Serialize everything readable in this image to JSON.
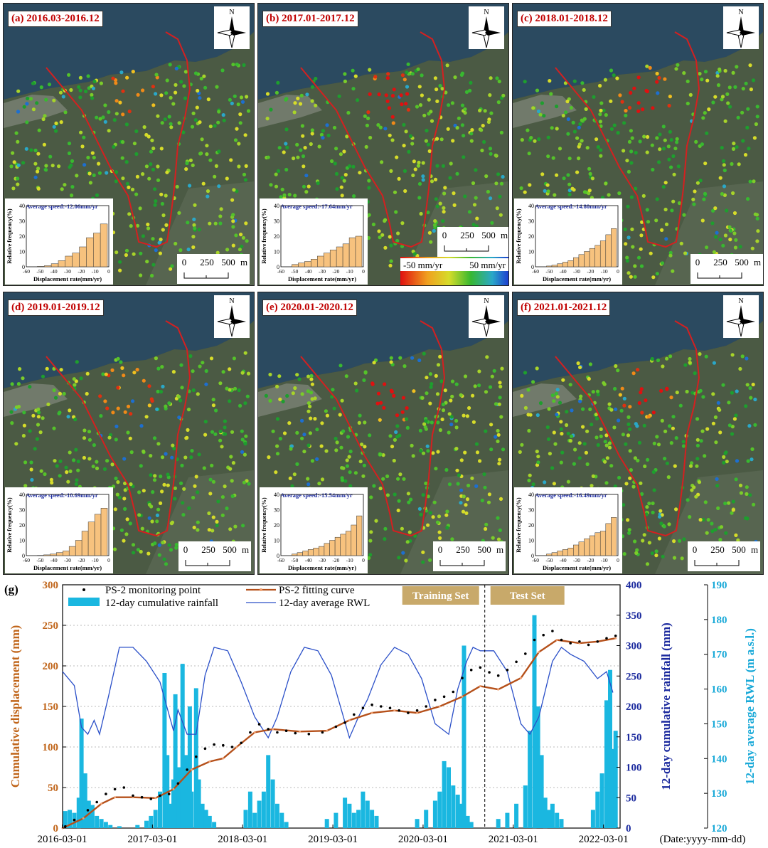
{
  "panels": [
    {
      "label": "(a) 2016.03-2016.12",
      "avg": "Average speed:-12.06mm/yr",
      "hist": [
        0.3,
        0.7,
        2,
        4,
        7,
        9,
        13,
        19,
        22,
        28
      ]
    },
    {
      "label": "(b) 2017.01-2017.12",
      "avg": "Average speed:-17.64mm/yr",
      "hist": [
        1.5,
        2.5,
        3.5,
        5,
        7,
        9,
        11,
        13,
        15,
        19,
        20
      ]
    },
    {
      "label": "(c) 2018.01-2018.12",
      "avg": "Average speed:-14.80mm/yr",
      "hist": [
        0.5,
        1,
        2,
        3,
        4,
        6,
        8,
        10,
        12,
        14,
        17,
        21,
        25
      ]
    },
    {
      "label": "(d) 2019.01-2019.12",
      "avg": "Average speed:-10.69mm/yr",
      "hist": [
        0.2,
        0.5,
        1,
        2,
        3,
        6,
        10,
        16,
        22,
        27,
        31
      ]
    },
    {
      "label": "(e) 2020.01-2020.12",
      "avg": "Average speed:-15.54mm/yr",
      "hist": [
        1,
        2,
        3,
        4,
        5,
        6,
        8,
        10,
        12,
        14,
        16,
        20,
        26
      ]
    },
    {
      "label": "(f) 2021.01-2021.12",
      "avg": "Average speed:-16.49mm/yr",
      "hist": [
        1,
        2,
        3,
        4,
        5,
        7,
        9,
        11,
        13,
        15,
        16,
        21,
        25
      ]
    }
  ],
  "hist_axes": {
    "ylabel": "Relative frequency(%)",
    "xlabel": "Displacement rate(mm/yr)",
    "yticks": [
      "0",
      "10",
      "20",
      "30",
      "40"
    ],
    "xticks": [
      "-60",
      "-50",
      "-40",
      "-30",
      "-20",
      "-10",
      "0"
    ]
  },
  "north_label": "N",
  "scale": {
    "t0": "0",
    "t1": "250",
    "t2": "500",
    "unit": "m"
  },
  "color_legend": {
    "min": "-50 mm/yr",
    "max": "50 mm/yr"
  },
  "colors": {
    "red_curve": "#d42020",
    "rain": "#1ab7e0",
    "rwl": "#2a4fc8",
    "fit": "#b5501a",
    "ytitle_left": "#c0651a",
    "ytitle_mid": "#1b2a9e",
    "ytitle_right": "#19a9d8",
    "tag_bg": "#c8a96a"
  },
  "chart_data": {
    "type": "line",
    "label": "(g)",
    "legend": {
      "points": "PS-2 monitoring point",
      "fit": "PS-2 fitting curve",
      "rain": "12-day cumulative rainfall",
      "rwl": "12-day average RWL"
    },
    "xlabel": "(Date:yyyy-mm-dd)",
    "x_ticks": [
      "2016-03-01",
      "2017-03-01",
      "2018-03-01",
      "2019-03-01",
      "2020-03-01",
      "2021-03-01",
      "2022-03-01"
    ],
    "y_left": {
      "title": "Cumulative displacement (mm)",
      "ticks": [
        "0",
        "50",
        "100",
        "150",
        "200",
        "250",
        "300"
      ],
      "range": [
        0,
        300
      ]
    },
    "y_mid": {
      "title": "12-day cumulative rainfall (mm)",
      "ticks": [
        "0",
        "50",
        "100",
        "150",
        "200",
        "250",
        "300",
        "350",
        "400"
      ],
      "range": [
        0,
        400
      ]
    },
    "y_right": {
      "title": "12-day average RWL (m a.s.l.)",
      "ticks": [
        "120",
        "130",
        "140",
        "150",
        "160",
        "170",
        "180",
        "190"
      ],
      "range": [
        120,
        190
      ]
    },
    "training_label": "Training Set",
    "test_label": "Test Set",
    "split_year": 2020.85,
    "fit": [
      [
        2016.17,
        0
      ],
      [
        2016.4,
        12
      ],
      [
        2016.6,
        30
      ],
      [
        2016.75,
        38
      ],
      [
        2016.95,
        38
      ],
      [
        2017.2,
        37
      ],
      [
        2017.4,
        48
      ],
      [
        2017.6,
        72
      ],
      [
        2017.8,
        82
      ],
      [
        2017.95,
        86
      ],
      [
        2018.1,
        100
      ],
      [
        2018.3,
        118
      ],
      [
        2018.5,
        122
      ],
      [
        2018.8,
        119
      ],
      [
        2019.1,
        120
      ],
      [
        2019.35,
        133
      ],
      [
        2019.6,
        142
      ],
      [
        2019.85,
        145
      ],
      [
        2020.1,
        142
      ],
      [
        2020.35,
        150
      ],
      [
        2020.6,
        162
      ],
      [
        2020.8,
        175
      ],
      [
        2021.0,
        171
      ],
      [
        2021.25,
        185
      ],
      [
        2021.45,
        217
      ],
      [
        2021.65,
        232
      ],
      [
        2021.9,
        228
      ],
      [
        2022.1,
        230
      ],
      [
        2022.3,
        234
      ]
    ],
    "rwl": [
      [
        2016.17,
        165
      ],
      [
        2016.3,
        161
      ],
      [
        2016.38,
        149
      ],
      [
        2016.45,
        147
      ],
      [
        2016.52,
        151
      ],
      [
        2016.58,
        147
      ],
      [
        2016.68,
        158
      ],
      [
        2016.8,
        172
      ],
      [
        2016.95,
        172
      ],
      [
        2017.1,
        168
      ],
      [
        2017.25,
        162
      ],
      [
        2017.4,
        148
      ],
      [
        2017.45,
        154
      ],
      [
        2017.55,
        147
      ],
      [
        2017.65,
        147
      ],
      [
        2017.75,
        164
      ],
      [
        2017.85,
        172
      ],
      [
        2018.0,
        171
      ],
      [
        2018.15,
        162
      ],
      [
        2018.3,
        152
      ],
      [
        2018.45,
        146
      ],
      [
        2018.55,
        152
      ],
      [
        2018.7,
        165
      ],
      [
        2018.85,
        172
      ],
      [
        2019.0,
        171
      ],
      [
        2019.15,
        164
      ],
      [
        2019.35,
        146
      ],
      [
        2019.45,
        152
      ],
      [
        2019.55,
        157
      ],
      [
        2019.7,
        167
      ],
      [
        2019.85,
        172
      ],
      [
        2020.0,
        170
      ],
      [
        2020.15,
        163
      ],
      [
        2020.3,
        150
      ],
      [
        2020.45,
        147
      ],
      [
        2020.55,
        160
      ],
      [
        2020.65,
        168
      ],
      [
        2020.72,
        172
      ],
      [
        2020.8,
        171
      ],
      [
        2020.95,
        171
      ],
      [
        2021.1,
        165
      ],
      [
        2021.25,
        150
      ],
      [
        2021.35,
        147
      ],
      [
        2021.45,
        152
      ],
      [
        2021.6,
        168
      ],
      [
        2021.7,
        172
      ],
      [
        2021.8,
        170
      ],
      [
        2021.95,
        168
      ],
      [
        2022.1,
        163
      ],
      [
        2022.2,
        165
      ],
      [
        2022.27,
        159
      ]
    ],
    "rain": [
      [
        2016.2,
        28
      ],
      [
        2016.25,
        30
      ],
      [
        2016.3,
        25
      ],
      [
        2016.35,
        50
      ],
      [
        2016.38,
        180
      ],
      [
        2016.42,
        90
      ],
      [
        2016.46,
        45
      ],
      [
        2016.5,
        38
      ],
      [
        2016.55,
        20
      ],
      [
        2016.6,
        15
      ],
      [
        2016.65,
        10
      ],
      [
        2016.7,
        5
      ],
      [
        2016.8,
        3
      ],
      [
        2017.0,
        5
      ],
      [
        2017.1,
        12
      ],
      [
        2017.15,
        20
      ],
      [
        2017.2,
        30
      ],
      [
        2017.25,
        60
      ],
      [
        2017.3,
        255
      ],
      [
        2017.33,
        120
      ],
      [
        2017.36,
        40
      ],
      [
        2017.4,
        80
      ],
      [
        2017.42,
        220
      ],
      [
        2017.46,
        100
      ],
      [
        2017.5,
        270
      ],
      [
        2017.54,
        120
      ],
      [
        2017.58,
        200
      ],
      [
        2017.6,
        60
      ],
      [
        2017.65,
        230
      ],
      [
        2017.68,
        80
      ],
      [
        2017.72,
        40
      ],
      [
        2017.76,
        30
      ],
      [
        2017.8,
        20
      ],
      [
        2017.85,
        10
      ],
      [
        2018.2,
        30
      ],
      [
        2018.25,
        60
      ],
      [
        2018.3,
        25
      ],
      [
        2018.35,
        45
      ],
      [
        2018.4,
        60
      ],
      [
        2018.45,
        120
      ],
      [
        2018.5,
        80
      ],
      [
        2018.55,
        40
      ],
      [
        2018.6,
        25
      ],
      [
        2018.65,
        10
      ],
      [
        2019.1,
        15
      ],
      [
        2019.2,
        25
      ],
      [
        2019.3,
        50
      ],
      [
        2019.35,
        40
      ],
      [
        2019.4,
        25
      ],
      [
        2019.45,
        30
      ],
      [
        2019.5,
        60
      ],
      [
        2019.55,
        45
      ],
      [
        2019.6,
        30
      ],
      [
        2019.65,
        20
      ],
      [
        2020.1,
        15
      ],
      [
        2020.2,
        30
      ],
      [
        2020.3,
        45
      ],
      [
        2020.35,
        60
      ],
      [
        2020.4,
        110
      ],
      [
        2020.45,
        100
      ],
      [
        2020.5,
        70
      ],
      [
        2020.55,
        55
      ],
      [
        2020.58,
        40
      ],
      [
        2020.62,
        300
      ],
      [
        2020.66,
        20
      ],
      [
        2020.7,
        10
      ],
      [
        2021.0,
        15
      ],
      [
        2021.1,
        25
      ],
      [
        2021.2,
        40
      ],
      [
        2021.3,
        70
      ],
      [
        2021.35,
        160
      ],
      [
        2021.4,
        350
      ],
      [
        2021.44,
        200
      ],
      [
        2021.48,
        120
      ],
      [
        2021.52,
        50
      ],
      [
        2021.56,
        30
      ],
      [
        2021.6,
        40
      ],
      [
        2021.65,
        25
      ],
      [
        2021.7,
        15
      ],
      [
        2022.05,
        30
      ],
      [
        2022.1,
        60
      ],
      [
        2022.15,
        90
      ],
      [
        2022.2,
        210
      ],
      [
        2022.24,
        260
      ],
      [
        2022.28,
        130
      ],
      [
        2022.3,
        160
      ]
    ],
    "points": [
      [
        2016.2,
        2
      ],
      [
        2016.3,
        10
      ],
      [
        2016.45,
        22
      ],
      [
        2016.55,
        32
      ],
      [
        2016.65,
        42
      ],
      [
        2016.75,
        48
      ],
      [
        2016.85,
        50
      ],
      [
        2016.95,
        40
      ],
      [
        2017.05,
        38
      ],
      [
        2017.15,
        36
      ],
      [
        2017.25,
        40
      ],
      [
        2017.35,
        42
      ],
      [
        2017.45,
        55
      ],
      [
        2017.55,
        72
      ],
      [
        2017.65,
        88
      ],
      [
        2017.75,
        98
      ],
      [
        2017.85,
        103
      ],
      [
        2017.95,
        102
      ],
      [
        2018.05,
        100
      ],
      [
        2018.15,
        105
      ],
      [
        2018.25,
        118
      ],
      [
        2018.35,
        128
      ],
      [
        2018.45,
        122
      ],
      [
        2018.55,
        118
      ],
      [
        2018.65,
        120
      ],
      [
        2018.75,
        117
      ],
      [
        2018.9,
        116
      ],
      [
        2019.05,
        118
      ],
      [
        2019.2,
        125
      ],
      [
        2019.3,
        130
      ],
      [
        2019.4,
        140
      ],
      [
        2019.5,
        148
      ],
      [
        2019.6,
        152
      ],
      [
        2019.7,
        150
      ],
      [
        2019.8,
        148
      ],
      [
        2019.9,
        145
      ],
      [
        2020.0,
        142
      ],
      [
        2020.1,
        145
      ],
      [
        2020.2,
        150
      ],
      [
        2020.3,
        158
      ],
      [
        2020.4,
        162
      ],
      [
        2020.5,
        168
      ],
      [
        2020.6,
        185
      ],
      [
        2020.7,
        195
      ],
      [
        2020.8,
        198
      ],
      [
        2020.9,
        192
      ],
      [
        2021.0,
        188
      ],
      [
        2021.1,
        195
      ],
      [
        2021.2,
        205
      ],
      [
        2021.3,
        215
      ],
      [
        2021.4,
        232
      ],
      [
        2021.5,
        238
      ],
      [
        2021.6,
        243
      ],
      [
        2021.7,
        232
      ],
      [
        2021.8,
        228
      ],
      [
        2021.9,
        230
      ],
      [
        2022.0,
        226
      ],
      [
        2022.1,
        230
      ],
      [
        2022.2,
        234
      ],
      [
        2022.3,
        237
      ]
    ]
  }
}
